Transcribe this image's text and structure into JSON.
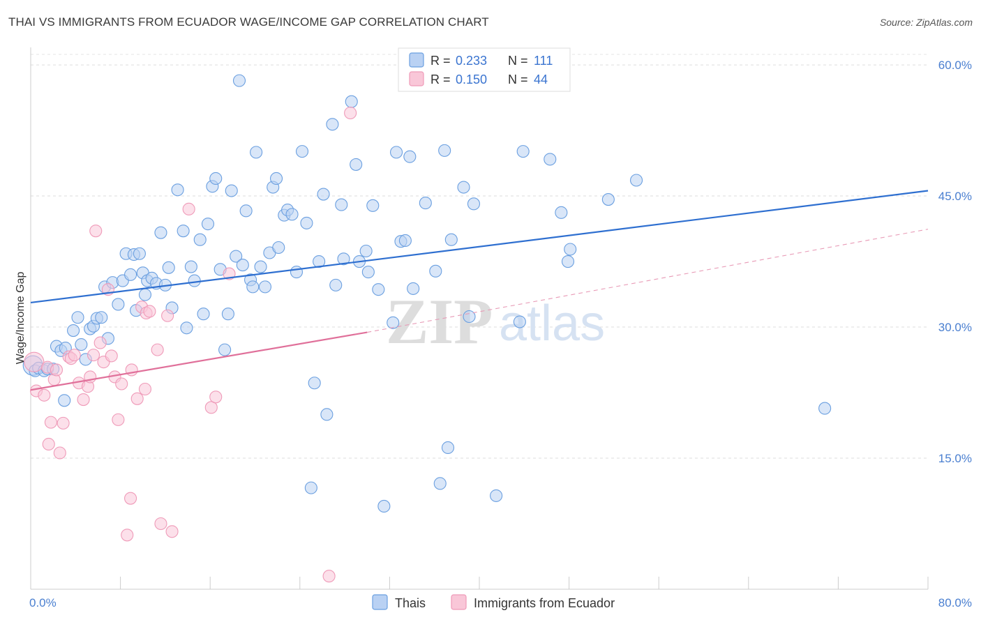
{
  "title": "THAI VS IMMIGRANTS FROM ECUADOR WAGE/INCOME GAP CORRELATION CHART",
  "source": "Source: ZipAtlas.com",
  "watermark": {
    "zip": "ZIP",
    "atlas": "atlas"
  },
  "colors": {
    "thais": "#6a9fe0",
    "ecuador": "#ef9ab8",
    "thais_line": "#2e6fd0",
    "ecuador_line": "#e0709a",
    "tick": "#4a7fd0"
  },
  "chart_data": {
    "type": "scatter",
    "title": "THAI VS IMMIGRANTS FROM ECUADOR WAGE/INCOME GAP CORRELATION CHART",
    "xlabel": "",
    "ylabel": "Wage/Income Gap",
    "xlim": [
      0,
      80
    ],
    "ylim": [
      0,
      62
    ],
    "x_tick_labels": [
      {
        "value": 0,
        "label": "0.0%"
      },
      {
        "value": 80,
        "label": "80.0%"
      }
    ],
    "y_tick_labels": [
      {
        "value": 15,
        "label": "15.0%"
      },
      {
        "value": 30,
        "label": "30.0%"
      },
      {
        "value": 45,
        "label": "45.0%"
      },
      {
        "value": 60,
        "label": "60.0%"
      }
    ],
    "grid": true,
    "legend_top": [
      {
        "r_label": "R =",
        "r_value": "0.233",
        "n_label": "N =",
        "n_value": "111"
      },
      {
        "r_label": "R =",
        "r_value": "0.150",
        "n_label": "N =",
        "n_value": "44"
      }
    ],
    "series": [
      {
        "name": "Thais",
        "trend": {
          "x": [
            0,
            80
          ],
          "y": [
            32.8,
            45.6
          ],
          "style": "solid"
        },
        "points": [
          [
            0.2,
            25.6
          ],
          [
            0.4,
            25.0
          ],
          [
            0.7,
            25.3
          ],
          [
            1.2,
            25.0
          ],
          [
            1.5,
            25.2
          ],
          [
            2.0,
            25.2
          ],
          [
            2.3,
            27.8
          ],
          [
            2.7,
            27.3
          ],
          [
            3.0,
            21.6
          ],
          [
            3.1,
            27.6
          ],
          [
            3.8,
            29.6
          ],
          [
            4.2,
            31.1
          ],
          [
            4.5,
            28.0
          ],
          [
            4.9,
            26.3
          ],
          [
            5.3,
            29.8
          ],
          [
            5.6,
            30.1
          ],
          [
            5.9,
            31.0
          ],
          [
            6.3,
            31.1
          ],
          [
            6.6,
            34.6
          ],
          [
            6.9,
            28.7
          ],
          [
            7.3,
            35.1
          ],
          [
            7.8,
            32.6
          ],
          [
            8.2,
            35.3
          ],
          [
            8.5,
            38.4
          ],
          [
            8.9,
            36.0
          ],
          [
            9.2,
            38.3
          ],
          [
            9.4,
            31.9
          ],
          [
            9.7,
            38.4
          ],
          [
            10.0,
            36.2
          ],
          [
            10.2,
            33.7
          ],
          [
            10.4,
            35.3
          ],
          [
            10.8,
            35.6
          ],
          [
            11.2,
            35.0
          ],
          [
            11.6,
            40.8
          ],
          [
            12.0,
            34.8
          ],
          [
            12.3,
            36.8
          ],
          [
            12.6,
            32.2
          ],
          [
            13.1,
            45.7
          ],
          [
            13.6,
            41.0
          ],
          [
            13.9,
            29.9
          ],
          [
            14.3,
            36.9
          ],
          [
            14.6,
            35.3
          ],
          [
            15.1,
            40.0
          ],
          [
            15.4,
            31.5
          ],
          [
            15.8,
            41.8
          ],
          [
            16.2,
            46.1
          ],
          [
            16.5,
            47.0
          ],
          [
            16.9,
            36.6
          ],
          [
            17.3,
            27.4
          ],
          [
            17.6,
            31.5
          ],
          [
            17.9,
            45.6
          ],
          [
            18.3,
            38.1
          ],
          [
            18.6,
            58.2
          ],
          [
            18.9,
            37.1
          ],
          [
            19.2,
            43.3
          ],
          [
            19.6,
            35.4
          ],
          [
            19.8,
            34.6
          ],
          [
            20.1,
            50.0
          ],
          [
            20.5,
            36.9
          ],
          [
            20.9,
            34.6
          ],
          [
            21.3,
            38.5
          ],
          [
            21.6,
            46.0
          ],
          [
            21.9,
            47.0
          ],
          [
            22.1,
            39.1
          ],
          [
            22.6,
            42.8
          ],
          [
            22.9,
            43.4
          ],
          [
            23.3,
            42.9
          ],
          [
            23.7,
            36.3
          ],
          [
            24.2,
            50.1
          ],
          [
            24.6,
            41.9
          ],
          [
            25.0,
            11.6
          ],
          [
            25.3,
            23.6
          ],
          [
            25.7,
            37.5
          ],
          [
            26.1,
            45.2
          ],
          [
            26.4,
            20.0
          ],
          [
            26.9,
            53.2
          ],
          [
            27.2,
            34.8
          ],
          [
            27.7,
            44.0
          ],
          [
            27.9,
            37.8
          ],
          [
            28.6,
            55.8
          ],
          [
            29.0,
            48.6
          ],
          [
            29.3,
            37.5
          ],
          [
            29.9,
            38.7
          ],
          [
            30.1,
            36.3
          ],
          [
            30.5,
            43.9
          ],
          [
            31.0,
            34.3
          ],
          [
            31.5,
            9.5
          ],
          [
            32.3,
            30.5
          ],
          [
            32.6,
            50.0
          ],
          [
            33.0,
            39.8
          ],
          [
            33.4,
            39.9
          ],
          [
            33.8,
            49.5
          ],
          [
            34.1,
            34.4
          ],
          [
            35.2,
            44.2
          ],
          [
            36.1,
            36.4
          ],
          [
            36.5,
            12.1
          ],
          [
            36.9,
            50.2
          ],
          [
            37.2,
            16.2
          ],
          [
            37.5,
            40.0
          ],
          [
            38.6,
            46.0
          ],
          [
            39.1,
            31.2
          ],
          [
            39.5,
            44.1
          ],
          [
            41.5,
            10.7
          ],
          [
            43.6,
            30.6
          ],
          [
            43.9,
            50.1
          ],
          [
            46.3,
            49.2
          ],
          [
            47.3,
            43.1
          ],
          [
            47.9,
            37.5
          ],
          [
            48.1,
            38.9
          ],
          [
            51.5,
            44.6
          ],
          [
            54.0,
            46.8
          ],
          [
            70.8,
            20.7
          ]
        ]
      },
      {
        "name": "Immigrants from Ecuador",
        "trend": {
          "x": [
            0,
            30
          ],
          "y": [
            22.8,
            29.4
          ],
          "dash_to_x": 80,
          "dash_to_y": 41.2,
          "style": "solid-then-dashed"
        },
        "points": [
          [
            0.3,
            26.0
          ],
          [
            0.5,
            22.7
          ],
          [
            1.2,
            22.2
          ],
          [
            1.5,
            25.4
          ],
          [
            1.6,
            16.6
          ],
          [
            1.8,
            19.1
          ],
          [
            2.1,
            24.0
          ],
          [
            2.3,
            25.1
          ],
          [
            2.6,
            15.6
          ],
          [
            2.9,
            19.0
          ],
          [
            3.4,
            26.6
          ],
          [
            3.6,
            26.4
          ],
          [
            3.9,
            26.8
          ],
          [
            4.3,
            23.6
          ],
          [
            4.7,
            21.7
          ],
          [
            5.1,
            23.2
          ],
          [
            5.3,
            24.3
          ],
          [
            5.6,
            26.8
          ],
          [
            5.8,
            41.0
          ],
          [
            6.2,
            28.2
          ],
          [
            6.5,
            26.0
          ],
          [
            6.9,
            34.3
          ],
          [
            7.2,
            26.7
          ],
          [
            7.5,
            24.3
          ],
          [
            7.8,
            19.4
          ],
          [
            8.1,
            23.5
          ],
          [
            8.6,
            6.2
          ],
          [
            8.9,
            10.4
          ],
          [
            9.0,
            25.1
          ],
          [
            9.5,
            21.8
          ],
          [
            9.9,
            32.3
          ],
          [
            10.2,
            22.9
          ],
          [
            10.3,
            31.6
          ],
          [
            10.6,
            31.8
          ],
          [
            11.3,
            27.4
          ],
          [
            11.6,
            7.5
          ],
          [
            12.2,
            31.3
          ],
          [
            12.6,
            6.6
          ],
          [
            14.1,
            43.5
          ],
          [
            16.1,
            20.8
          ],
          [
            16.5,
            22.0
          ],
          [
            17.7,
            36.1
          ],
          [
            26.6,
            1.5
          ],
          [
            28.5,
            54.5
          ]
        ]
      }
    ]
  }
}
